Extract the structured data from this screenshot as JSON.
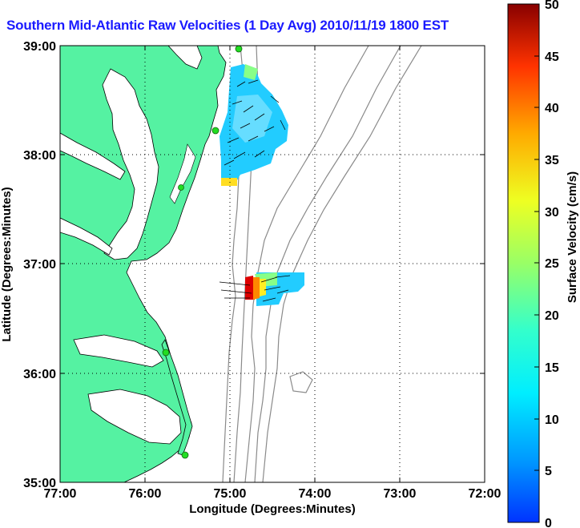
{
  "title": "Southern Mid-Atlantic Raw Velocities (1 Day Avg) 2010/11/19 1800 EST",
  "xlabel": "Longitude (Degrees:Minutes)",
  "ylabel": "Latitude (Degrees:Minutes)",
  "x_ticks": [
    "77:00",
    "76:00",
    "75:00",
    "74:00",
    "73:00",
    "72:00"
  ],
  "y_ticks": [
    "39:00",
    "38:00",
    "37:00",
    "36:00",
    "35:00"
  ],
  "colorbar": {
    "label": "Surface Velocity (cm/s)",
    "ticks": [
      "0",
      "5",
      "10",
      "15",
      "20",
      "25",
      "30",
      "35",
      "40",
      "45",
      "50"
    ],
    "range_cm_s": [
      0,
      50
    ]
  },
  "colors": {
    "land": "#55f2a2",
    "ocean": "#ffffff",
    "title": "#1a1aff",
    "bathymetry": "#8a8a8a",
    "stations": "#22dd22"
  },
  "map_extent": {
    "lon": [
      -77,
      -72
    ],
    "lat": [
      35,
      39
    ]
  }
}
